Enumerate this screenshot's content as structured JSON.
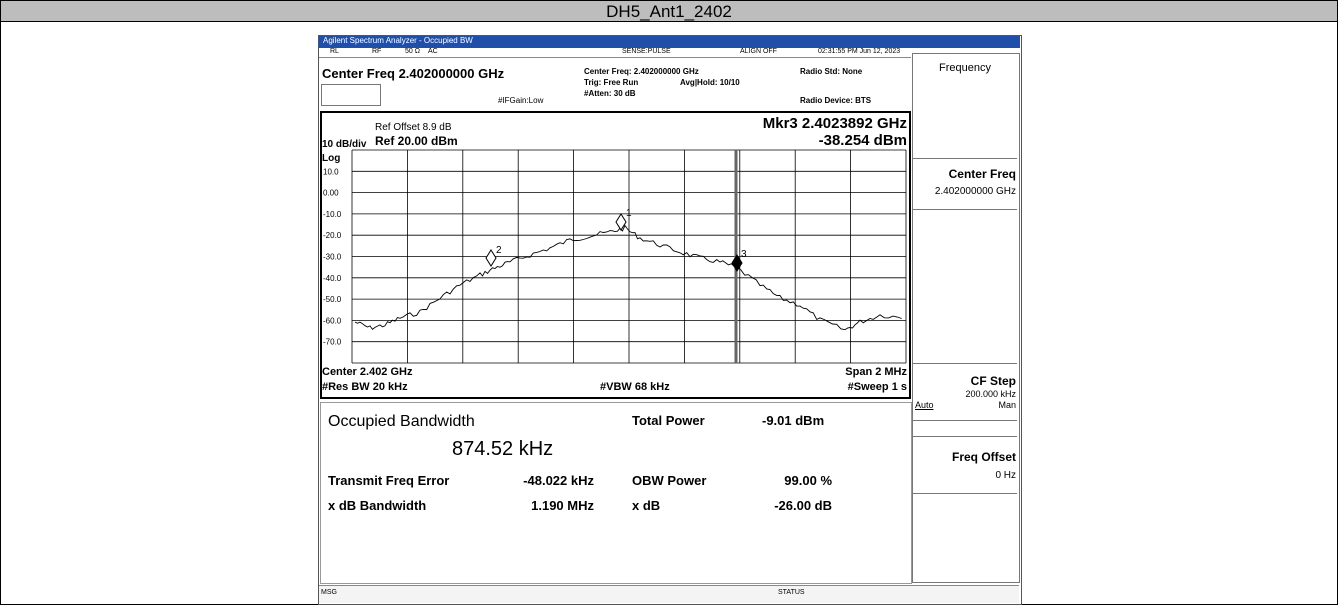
{
  "header": "DH5_Ant1_2402",
  "window_title": "Agilent Spectrum Analyzer - Occupied BW",
  "status_bar": [
    "RL",
    "RF",
    "50 Ω",
    "AC",
    "SENSE:PULSE",
    "ALIGN OFF",
    "02:31:55 PM Jun 12, 2023"
  ],
  "settings": {
    "center_freq": "Center Freq 2.402000000 GHz",
    "if_gain": "#IFGain:Low",
    "center_freq_info": "Center Freq: 2.402000000 GHz",
    "trig": "Trig: Free Run",
    "avg": "Avg|Hold: 10/10",
    "atten": "#Atten: 30 dB",
    "radio_std": "Radio Std: None",
    "radio_device": "Radio Device: BTS"
  },
  "graph": {
    "ref_offset": "Ref Offset 8.9 dB",
    "scale": "10 dB/div",
    "ref_level": "Ref 20.00 dBm",
    "log": "Log",
    "marker_freq": "Mkr3  2.4023892 GHz",
    "marker_level": "-38.254 dBm",
    "y_labels": [
      "10.0",
      "0.00",
      "-10.0",
      "-20.0",
      "-30.0",
      "-40.0",
      "-50.0",
      "-60.0",
      "-70.0"
    ],
    "markers": [
      "1",
      "2",
      "3"
    ],
    "center": "Center  2.402 GHz",
    "span": "Span 2 MHz",
    "res_bw": "#Res BW  20 kHz",
    "vbw": "#VBW  68 kHz",
    "sweep": "#Sweep  1 s"
  },
  "results": {
    "occupied_bw_label": "Occupied Bandwidth",
    "occupied_bw_value": "874.52 kHz",
    "total_power_label": "Total Power",
    "total_power_value": "-9.01 dBm",
    "transmit_freq_error_label": "Transmit Freq Error",
    "transmit_freq_error_value": "-48.022 kHz",
    "obw_power_label": "OBW Power",
    "obw_power_value": "99.00 %",
    "xdb_bw_label": "x dB Bandwidth",
    "xdb_bw_value": "1.190 MHz",
    "xdb_label": "x dB",
    "xdb_value": "-26.00 dB"
  },
  "softkeys": {
    "menu": "Frequency",
    "center_freq_label": "Center Freq",
    "center_freq_value": "2.402000000 GHz",
    "cf_step_label": "CF Step",
    "cf_step_value": "200.000 kHz",
    "auto": "Auto",
    "man": "Man",
    "freq_offset_label": "Freq Offset",
    "freq_offset_value": "0 Hz"
  },
  "bottom": {
    "msg": "MSG",
    "status": "STATUS"
  }
}
